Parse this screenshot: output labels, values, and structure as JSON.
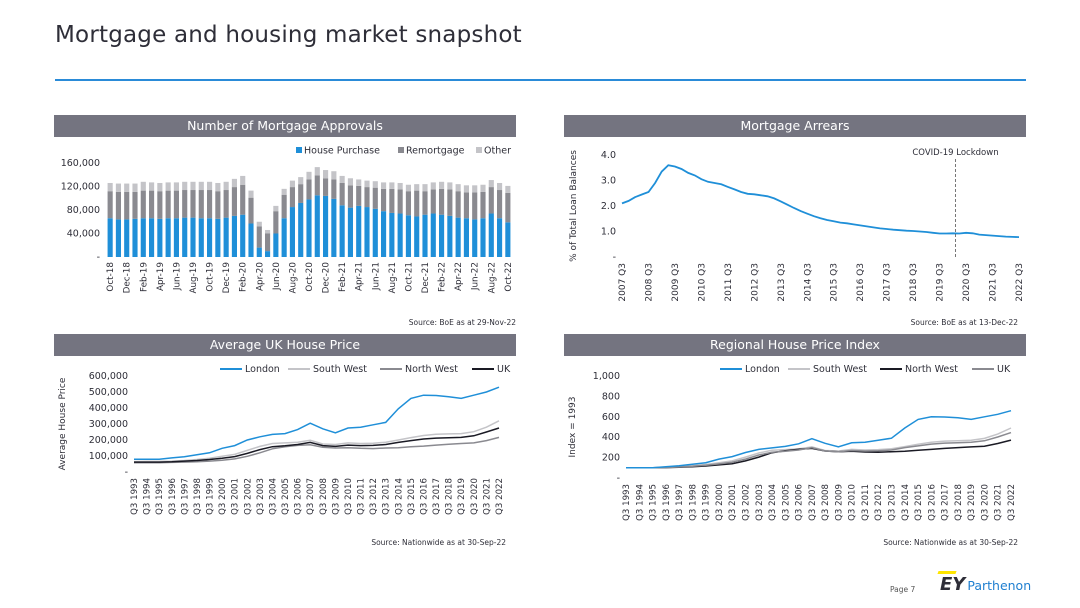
{
  "page": {
    "title": "Mortgage and housing market snapshot",
    "page_label": "Page 7",
    "logo": {
      "mark": "EY",
      "name": "Parthenon"
    }
  },
  "panels": {
    "approvals": {
      "header": "Number of Mortgage Approvals",
      "source": "Source: BoE as at 29-Nov-22"
    },
    "arrears": {
      "header": "Mortgage Arrears",
      "source": "Source: BoE as at 13-Dec-22"
    },
    "house_price": {
      "header": "Average UK House Price",
      "source": "Source: Nationwide as at 30-Sep-22"
    },
    "regional": {
      "header": "Regional House Price Index",
      "source": "Source: Nationwide as at 30-Sep-22"
    }
  },
  "colors": {
    "blue": "#1f8fd8",
    "light_grey": "#c4c4c8",
    "mid_grey": "#8a8a90",
    "black": "#1a1a24",
    "header_bg": "#747480",
    "accent_rule": "#2a8bd8"
  },
  "chart_data": [
    {
      "type": "bar",
      "stacked": true,
      "title": "Number of Mortgage Approvals",
      "ylabel": "",
      "ylim": [
        0,
        160000
      ],
      "yticks": [
        0,
        40000,
        80000,
        120000,
        160000
      ],
      "ytick_labels": [
        "-",
        "40,000",
        "80,000",
        "120,000",
        "160,000"
      ],
      "legend_position": "top-right",
      "grid": false,
      "categories": [
        "Oct-18",
        "Nov-18",
        "Dec-18",
        "Jan-19",
        "Feb-19",
        "Mar-19",
        "Apr-19",
        "May-19",
        "Jun-19",
        "Jul-19",
        "Aug-19",
        "Sep-19",
        "Oct-19",
        "Nov-19",
        "Dec-19",
        "Jan-20",
        "Feb-20",
        "Mar-20",
        "Apr-20",
        "May-20",
        "Jun-20",
        "Jul-20",
        "Aug-20",
        "Sep-20",
        "Oct-20",
        "Nov-20",
        "Dec-20",
        "Jan-21",
        "Feb-21",
        "Mar-21",
        "Apr-21",
        "May-21",
        "Jun-21",
        "Jul-21",
        "Aug-21",
        "Sep-21",
        "Oct-21",
        "Nov-21",
        "Dec-21",
        "Jan-22",
        "Feb-22",
        "Mar-22",
        "Apr-22",
        "May-22",
        "Jun-22",
        "Jul-22",
        "Aug-22",
        "Sep-22",
        "Oct-22"
      ],
      "shown_tick_labels": [
        "Oct-18",
        "Dec-18",
        "Feb-19",
        "Apr-19",
        "Jun-19",
        "Aug-19",
        "Oct-19",
        "Dec-19",
        "Feb-20",
        "Apr-20",
        "Jun-20",
        "Aug-20",
        "Oct-20",
        "Dec-20",
        "Feb-21",
        "Apr-21",
        "Jun-21",
        "Aug-21",
        "Oct-21",
        "Dec-21",
        "Feb-22",
        "Apr-22",
        "Jun-22",
        "Aug-22",
        "Oct-22"
      ],
      "series": [
        {
          "name": "House Purchase",
          "color": "#1f8fd8",
          "values": [
            66000,
            64000,
            64000,
            65000,
            66000,
            66000,
            65000,
            66000,
            66000,
            67000,
            67000,
            66000,
            66000,
            65000,
            67000,
            70000,
            72000,
            57000,
            16000,
            10000,
            40000,
            66000,
            85000,
            92000,
            98000,
            105000,
            104000,
            99000,
            88000,
            84000,
            87000,
            85000,
            82000,
            78000,
            75000,
            74000,
            71000,
            69000,
            72000,
            74000,
            72000,
            70000,
            67000,
            66000,
            64000,
            66000,
            74000,
            66000,
            59000
          ]
        },
        {
          "name": "Remortgage",
          "color": "#8a8a90",
          "values": [
            46000,
            47000,
            47000,
            46000,
            47000,
            47000,
            47000,
            47000,
            47000,
            47000,
            47000,
            48000,
            48000,
            47000,
            47000,
            49000,
            51000,
            44000,
            36000,
            30000,
            38000,
            40000,
            34000,
            32000,
            34000,
            34000,
            30000,
            33000,
            38000,
            38000,
            34000,
            34000,
            36000,
            38000,
            41000,
            41000,
            41000,
            44000,
            40000,
            41000,
            44000,
            45000,
            45000,
            44000,
            46000,
            45000,
            45000,
            48000,
            50000
          ]
        },
        {
          "name": "Other",
          "color": "#c4c4c8",
          "values": [
            14000,
            14000,
            14000,
            14000,
            15000,
            14000,
            14000,
            14000,
            14000,
            14000,
            14000,
            14000,
            14000,
            14000,
            14000,
            14000,
            15000,
            12000,
            8000,
            6000,
            9000,
            10000,
            11000,
            12000,
            13000,
            14000,
            14000,
            14000,
            12000,
            12000,
            11000,
            11000,
            11000,
            11000,
            11000,
            11000,
            11000,
            11000,
            12000,
            12000,
            12000,
            12000,
            12000,
            12000,
            12000,
            12000,
            12000,
            12000,
            12000
          ]
        }
      ]
    },
    {
      "type": "line",
      "title": "Mortgage Arrears",
      "ylabel": "% of Total Loan Balances",
      "ylim": [
        0,
        4.0
      ],
      "yticks": [
        0,
        1.0,
        2.0,
        3.0,
        4.0
      ],
      "ytick_labels": [
        "-",
        "1.0",
        "2.0",
        "3.0",
        "4.0"
      ],
      "x_tick_labels": [
        "2007 Q3",
        "2008 Q3",
        "2009 Q3",
        "2010 Q3",
        "2011 Q3",
        "2012 Q3",
        "2013  Q3",
        "2014 Q3",
        "2015 Q3",
        "2016 Q3",
        "2017 Q3",
        "2018 Q3",
        "2019 Q3",
        "2020 Q3",
        "2021 Q3",
        "2022 Q3"
      ],
      "annotation": {
        "label": "COVID-19 Lockdown",
        "x_index": 12.6
      },
      "grid": false,
      "series": [
        {
          "name": "",
          "color": "#1f8fd8",
          "x_index": [
            0,
            0.25,
            0.5,
            0.75,
            1,
            1.25,
            1.5,
            1.75,
            2,
            2.25,
            2.5,
            2.75,
            3,
            3.25,
            3.5,
            3.75,
            4,
            4.25,
            4.5,
            4.75,
            5,
            5.25,
            5.5,
            5.75,
            6,
            6.25,
            6.5,
            6.75,
            7,
            7.25,
            7.5,
            7.75,
            8,
            8.25,
            8.5,
            8.75,
            9,
            9.25,
            9.5,
            9.75,
            10,
            10.25,
            10.5,
            10.75,
            11,
            11.25,
            11.5,
            11.75,
            12,
            12.25,
            12.5,
            12.75,
            13,
            13.25,
            13.5,
            13.75,
            14,
            14.25,
            14.5,
            14.75,
            15
          ],
          "values": [
            2.1,
            2.2,
            2.35,
            2.45,
            2.55,
            2.9,
            3.35,
            3.6,
            3.55,
            3.45,
            3.3,
            3.2,
            3.05,
            2.95,
            2.9,
            2.85,
            2.75,
            2.65,
            2.55,
            2.48,
            2.46,
            2.42,
            2.38,
            2.3,
            2.18,
            2.05,
            1.92,
            1.8,
            1.7,
            1.6,
            1.52,
            1.45,
            1.4,
            1.35,
            1.32,
            1.28,
            1.24,
            1.2,
            1.16,
            1.12,
            1.1,
            1.07,
            1.05,
            1.03,
            1.02,
            1.0,
            0.98,
            0.95,
            0.92,
            0.92,
            0.93,
            0.92,
            0.95,
            0.93,
            0.88,
            0.86,
            0.84,
            0.82,
            0.8,
            0.79,
            0.78
          ]
        }
      ]
    },
    {
      "type": "line",
      "title": "Average UK House Price",
      "ylabel": "Average House Price",
      "ylim": [
        0,
        600000
      ],
      "yticks": [
        0,
        100000,
        200000,
        300000,
        400000,
        500000,
        600000
      ],
      "ytick_labels": [
        "-",
        "100,000",
        "200,000",
        "300,000",
        "400,000",
        "500,000",
        "600,000"
      ],
      "x_tick_labels": [
        "Q3 1993",
        "Q3 1994",
        "Q3 1995",
        "Q3 1996",
        "Q3 1997",
        "Q3 1998",
        "Q3 1999",
        "Q3 2000",
        "Q3 2001",
        "Q3 2002",
        "Q3 2003",
        "Q3 2004",
        "Q3 2005",
        "Q3 2006",
        "Q3 2007",
        "Q3 2008",
        "Q3 2009",
        "Q3 2010",
        "Q3 2011",
        "Q3 2012",
        "Q3 2013",
        "Q3 2014",
        "Q3 2015",
        "Q3 2016",
        "Q3 2017",
        "Q3 2018",
        "Q3 2019",
        "Q3 2020",
        "Q3 2021",
        "Q3 2022"
      ],
      "legend_position": "top-right",
      "grid": false,
      "series": [
        {
          "name": "London",
          "color": "#1f8fd8",
          "values": [
            80000,
            80000,
            80000,
            88000,
            95000,
            108000,
            120000,
            148000,
            165000,
            200000,
            220000,
            235000,
            240000,
            265000,
            305000,
            270000,
            245000,
            275000,
            280000,
            295000,
            310000,
            395000,
            460000,
            480000,
            478000,
            470000,
            460000,
            480000,
            500000,
            530000
          ]
        },
        {
          "name": "South West",
          "color": "#c4c4c8",
          "values": [
            65000,
            66000,
            66000,
            68000,
            72000,
            78000,
            86000,
            98000,
            110000,
            135000,
            160000,
            178000,
            182000,
            186000,
            198000,
            175000,
            172000,
            182000,
            178000,
            180000,
            186000,
            200000,
            215000,
            228000,
            236000,
            238000,
            240000,
            252000,
            280000,
            320000
          ]
        },
        {
          "name": "North West",
          "color": "#8a8a90",
          "values": [
            58000,
            58000,
            58000,
            60000,
            62000,
            64000,
            68000,
            74000,
            82000,
            98000,
            120000,
            145000,
            158000,
            166000,
            170000,
            155000,
            150000,
            152000,
            148000,
            146000,
            150000,
            152000,
            158000,
            162000,
            168000,
            174000,
            178000,
            182000,
            196000,
            216000
          ]
        },
        {
          "name": "UK",
          "color": "#1a1a24",
          "values": [
            62000,
            62000,
            62000,
            64000,
            68000,
            72000,
            78000,
            86000,
            96000,
            116000,
            140000,
            158000,
            164000,
            172000,
            185000,
            165000,
            160000,
            168000,
            165000,
            166000,
            172000,
            185000,
            196000,
            206000,
            212000,
            214000,
            216000,
            226000,
            250000,
            275000
          ]
        }
      ]
    },
    {
      "type": "line",
      "title": "Regional House Price Index",
      "ylabel": "Index = 1993",
      "ylim": [
        0,
        1000
      ],
      "yticks": [
        0,
        200,
        400,
        600,
        800,
        1000
      ],
      "ytick_labels": [
        "-",
        "200",
        "400",
        "600",
        "800",
        "1,000"
      ],
      "x_tick_labels": [
        "Q3 1993",
        "Q3 1994",
        "Q3 1995",
        "Q3 1996",
        "Q3 1997",
        "Q3 1998",
        "Q3 1999",
        "Q3 2000",
        "Q3 2001",
        "Q3 2002",
        "Q3 2003",
        "Q3 2004",
        "Q3 2005",
        "Q3 2006",
        "Q3 2007",
        "Q3 2008",
        "Q3 2009",
        "Q3 2010",
        "Q3 2011",
        "Q3 2012",
        "Q3 2013",
        "Q3 2014",
        "Q3 2015",
        "Q3 2016",
        "Q3 2017",
        "Q3 2018",
        "Q3 2019",
        "Q3 2020",
        "Q3 2021",
        "Q3 2022"
      ],
      "legend_position": "top-right",
      "grid": false,
      "series": [
        {
          "name": "London",
          "color": "#1f8fd8",
          "values": [
            100,
            100,
            100,
            110,
            120,
            135,
            150,
            185,
            210,
            250,
            280,
            295,
            310,
            335,
            385,
            340,
            305,
            345,
            350,
            370,
            390,
            490,
            575,
            600,
            598,
            590,
            575,
            600,
            625,
            660
          ]
        },
        {
          "name": "South West",
          "color": "#c4c4c8",
          "values": [
            100,
            101,
            101,
            104,
            110,
            120,
            132,
            150,
            168,
            205,
            245,
            272,
            278,
            285,
            305,
            270,
            265,
            280,
            275,
            278,
            286,
            308,
            330,
            350,
            362,
            366,
            370,
            388,
            430,
            490
          ]
        },
        {
          "name": "North West",
          "color": "#1a1a24",
          "values": [
            100,
            100,
            100,
            102,
            105,
            110,
            118,
            128,
            140,
            168,
            205,
            248,
            268,
            282,
            290,
            265,
            258,
            262,
            255,
            252,
            258,
            262,
            272,
            280,
            290,
            298,
            305,
            312,
            338,
            372
          ]
        },
        {
          "name": "UK",
          "color": "#8a8a90",
          "values": [
            100,
            100,
            100,
            103,
            108,
            115,
            125,
            138,
            155,
            185,
            225,
            252,
            262,
            275,
            298,
            265,
            258,
            270,
            265,
            268,
            275,
            298,
            315,
            332,
            342,
            346,
            350,
            365,
            402,
            445
          ]
        }
      ]
    }
  ]
}
